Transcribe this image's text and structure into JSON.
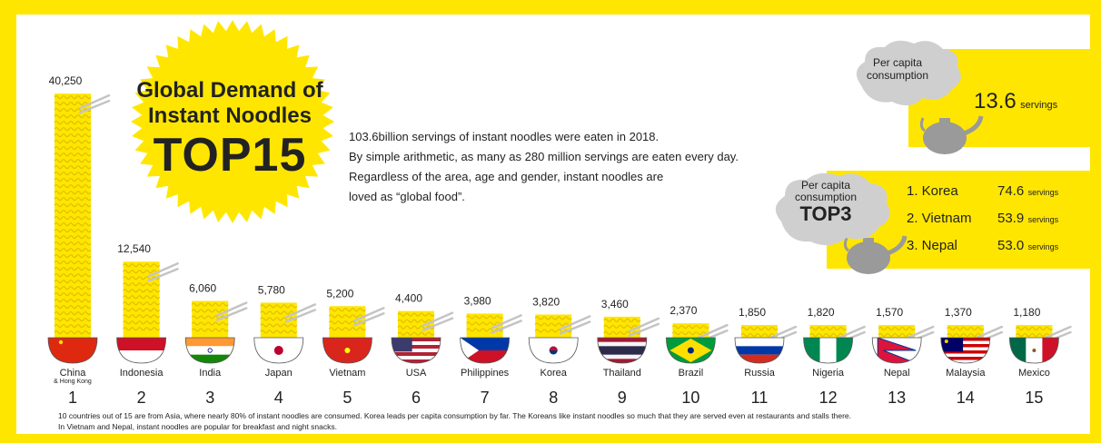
{
  "title": {
    "line1": "Global Demand of",
    "line2": "Instant Noodles",
    "line3": "TOP15"
  },
  "description": [
    "103.6billion servings of instant noodles were eaten in 2018.",
    "By simple arithmetic, as many as 280 million servings are eaten every day.",
    "Regardless of the area, age and gender, instant noodles are",
    "loved as “global food”."
  ],
  "per_capita": {
    "label_line1": "Per capita",
    "label_line2": "consumption",
    "value": "13.6",
    "unit": "servings"
  },
  "top3": {
    "label_line1": "Per capita",
    "label_line2": "consumption",
    "label_big": "TOP3",
    "items": [
      {
        "rank_country": "1. Korea",
        "value": "74.6",
        "unit": "servings"
      },
      {
        "rank_country": "2. Vietnam",
        "value": "53.9",
        "unit": "servings"
      },
      {
        "rank_country": "3. Nepal",
        "value": "53.0",
        "unit": "servings"
      }
    ]
  },
  "chart_data": {
    "type": "bar",
    "categories": [
      "China",
      "Indonesia",
      "India",
      "Japan",
      "Vietnam",
      "USA",
      "Philippines",
      "Korea",
      "Thailand",
      "Brazil",
      "Russia",
      "Nigeria",
      "Nepal",
      "Malaysia",
      "Mexico"
    ],
    "sublabels": [
      "& Hong Kong",
      "",
      "",
      "",
      "",
      "",
      "",
      "",
      "",
      "",
      "",
      "",
      "",
      "",
      ""
    ],
    "ranks": [
      "1",
      "2",
      "3",
      "4",
      "5",
      "6",
      "7",
      "8",
      "9",
      "10",
      "11",
      "12",
      "13",
      "14",
      "15"
    ],
    "values": [
      40250,
      12540,
      6060,
      5780,
      5200,
      4400,
      3980,
      3820,
      3460,
      2370,
      1850,
      1820,
      1570,
      1370,
      1180
    ],
    "value_labels": [
      "40,250",
      "12,540",
      "6,060",
      "5,780",
      "5,200",
      "4,400",
      "3,980",
      "3,820",
      "3,460",
      "2,370",
      "1,850",
      "1,820",
      "1,570",
      "1,370",
      "1,180"
    ],
    "flags": [
      "china",
      "indonesia",
      "india",
      "japan",
      "vietnam",
      "usa",
      "philippines",
      "korea",
      "thailand",
      "brazil",
      "russia",
      "nigeria",
      "nepal",
      "malaysia",
      "mexico"
    ]
  },
  "footnote": [
    "10 countries out of 15 are from Asia, where nearly 80% of instant noodles are consumed. Korea leads per capita consumption by far. The Koreans like instant noodles so much that they are served even at restaurants and stalls there.",
    "In Vietnam and Nepal, instant noodles are popular for breakfast and night snacks."
  ],
  "colors": {
    "frame": "#ffe600",
    "noodle": "#ffe600",
    "noodle_dark": "#e8c800",
    "text": "#222222",
    "kettle": "#c8c8c8"
  }
}
